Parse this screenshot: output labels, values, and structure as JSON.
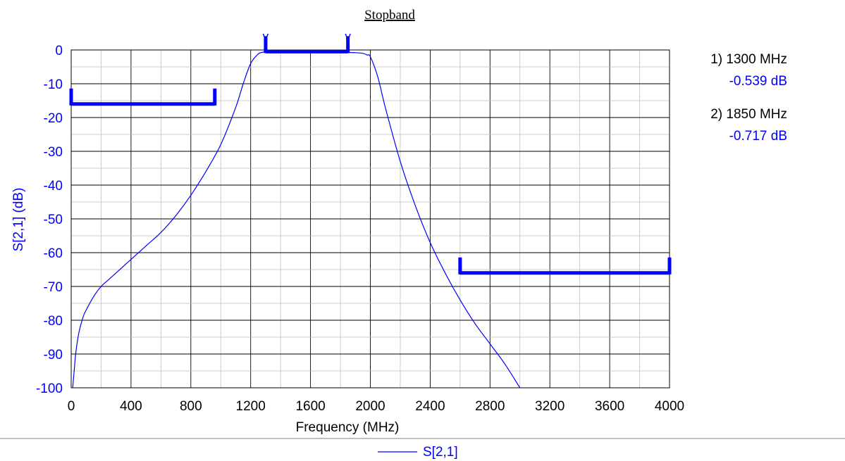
{
  "chart_data": {
    "type": "line",
    "title": "Stopband",
    "xlabel": "Frequency (MHz)",
    "ylabel": "S[2,1] (dB)",
    "xlim": [
      0,
      4000
    ],
    "ylim": [
      -100,
      0
    ],
    "x_ticks": [
      "0",
      "400",
      "800",
      "1200",
      "1600",
      "2000",
      "2400",
      "2800",
      "3200",
      "3600",
      "4000"
    ],
    "y_ticks": [
      "0",
      "-10",
      "-20",
      "-30",
      "-40",
      "-50",
      "-60",
      "-70",
      "-80",
      "-90",
      "-100"
    ],
    "grid": true,
    "legend_position": "bottom-center",
    "series": [
      {
        "name": "S[2,1]",
        "color": "#0000ff",
        "x": [
          10,
          20,
          30,
          50,
          80,
          100,
          150,
          200,
          250,
          300,
          400,
          500,
          600,
          700,
          800,
          900,
          1000,
          1100,
          1150,
          1200,
          1250,
          1280,
          1300,
          1400,
          1500,
          1600,
          1700,
          1800,
          1850,
          1900,
          1950,
          1980,
          2000,
          2050,
          2100,
          2200,
          2300,
          2400,
          2500,
          2600,
          2700,
          2800,
          2900,
          3000
        ],
        "y": [
          -100,
          -95,
          -90,
          -84,
          -79,
          -77,
          -73,
          -70,
          -68,
          -66,
          -62,
          -58,
          -54,
          -49,
          -43,
          -36,
          -28,
          -17,
          -10,
          -4,
          -1.2,
          -0.7,
          -0.539,
          -0.5,
          -0.5,
          -0.5,
          -0.5,
          -0.6,
          -0.717,
          -0.8,
          -1,
          -1.5,
          -2,
          -8,
          -17,
          -33,
          -46,
          -57,
          -66,
          -74,
          -81,
          -87,
          -93,
          -100
        ]
      }
    ],
    "masks": [
      {
        "x": [
          0,
          960
        ],
        "y": -16
      },
      {
        "x": [
          2600,
          4000
        ],
        "y": -66
      },
      {
        "x": [
          1300,
          1850
        ],
        "y": -0.5
      }
    ],
    "markers": [
      {
        "symbol": "v",
        "x": 1300,
        "y": -0.539,
        "label": "1) 1300 MHz",
        "value": "-0.539 dB"
      },
      {
        "symbol": "v",
        "x": 1850,
        "y": -0.717,
        "label": "2) 1850 MHz",
        "value": "-0.717 dB"
      }
    ],
    "colors": {
      "trace": "#0000ff",
      "axis_text": "#000000",
      "grid_major": "#000000",
      "grid_minor": "#bfbfbf"
    }
  }
}
